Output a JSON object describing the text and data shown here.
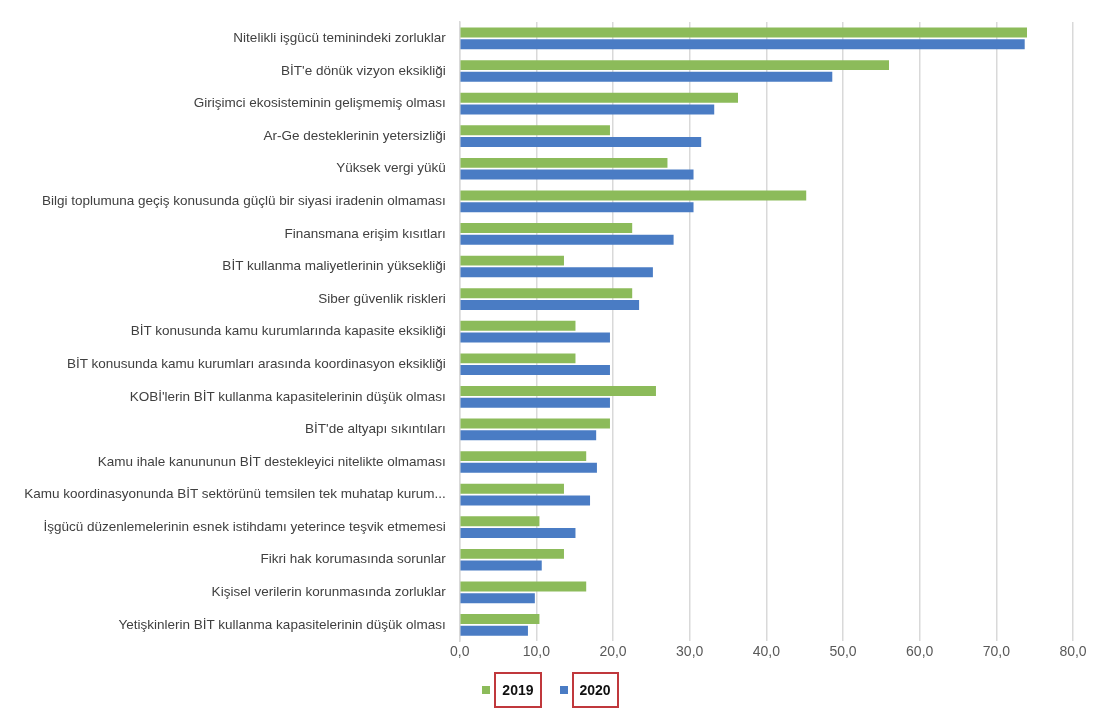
{
  "chart_data": {
    "type": "bar",
    "orientation": "horizontal",
    "categories": [
      "Nitelikli işgücü teminindeki zorluklar",
      "BİT'e dönük vizyon eksikliği",
      "Girişimci ekosisteminin gelişmemiş olması",
      "Ar-Ge desteklerinin yetersizliği",
      "Yüksek vergi yükü",
      "Bilgi toplumuna geçiş konusunda güçlü bir siyasi iradenin olmaması",
      "Finansmana erişim kısıtları",
      "BİT kullanma maliyetlerinin yüksekliği",
      "Siber güvenlik riskleri",
      "BİT konusunda kamu kurumlarında kapasite eksikliği",
      "BİT konusunda kamu kurumları arasında koordinasyon eksikliği",
      "KOBİ'lerin BİT kullanma kapasitelerinin düşük olması",
      "BİT'de altyapı sıkıntıları",
      "Kamu ihale kanununun BİT destekleyici nitelikte olmaması",
      "Kamu koordinasyonunda BİT sektörünü temsilen tek muhatap kurum...",
      "İşgücü düzenlemelerinin esnek istihdamı yeterince teşvik etmemesi",
      "Fikri hak korumasında sorunlar",
      "Kişisel verilerin korunmasında zorluklar",
      "Yetişkinlerin BİT kullanma kapasitelerinin düşük olması"
    ],
    "series": [
      {
        "name": "2019",
        "color": "#8cbb5a",
        "values": [
          74.0,
          56.0,
          36.3,
          19.6,
          27.1,
          45.2,
          22.5,
          13.6,
          22.5,
          15.1,
          15.1,
          25.6,
          19.6,
          16.5,
          13.6,
          10.4,
          13.6,
          16.5,
          10.4
        ]
      },
      {
        "name": "2020",
        "color": "#4a7cc4",
        "values": [
          73.7,
          48.6,
          33.2,
          31.5,
          30.5,
          30.5,
          27.9,
          25.2,
          23.4,
          19.6,
          19.6,
          19.6,
          17.8,
          17.9,
          17.0,
          15.1,
          10.7,
          9.8,
          8.9
        ]
      }
    ],
    "xlim": [
      0,
      80
    ],
    "xticks": [
      {
        "value": 0,
        "label": "0,0"
      },
      {
        "value": 10,
        "label": "10,0"
      },
      {
        "value": 20,
        "label": "20,0"
      },
      {
        "value": 30,
        "label": "30,0"
      },
      {
        "value": 40,
        "label": "40,0"
      },
      {
        "value": 50,
        "label": "50,0"
      },
      {
        "value": 60,
        "label": "60,0"
      },
      {
        "value": 70,
        "label": "70,0"
      },
      {
        "value": 80,
        "label": "80,0"
      }
    ],
    "grid": "x",
    "legend": "bottom"
  }
}
